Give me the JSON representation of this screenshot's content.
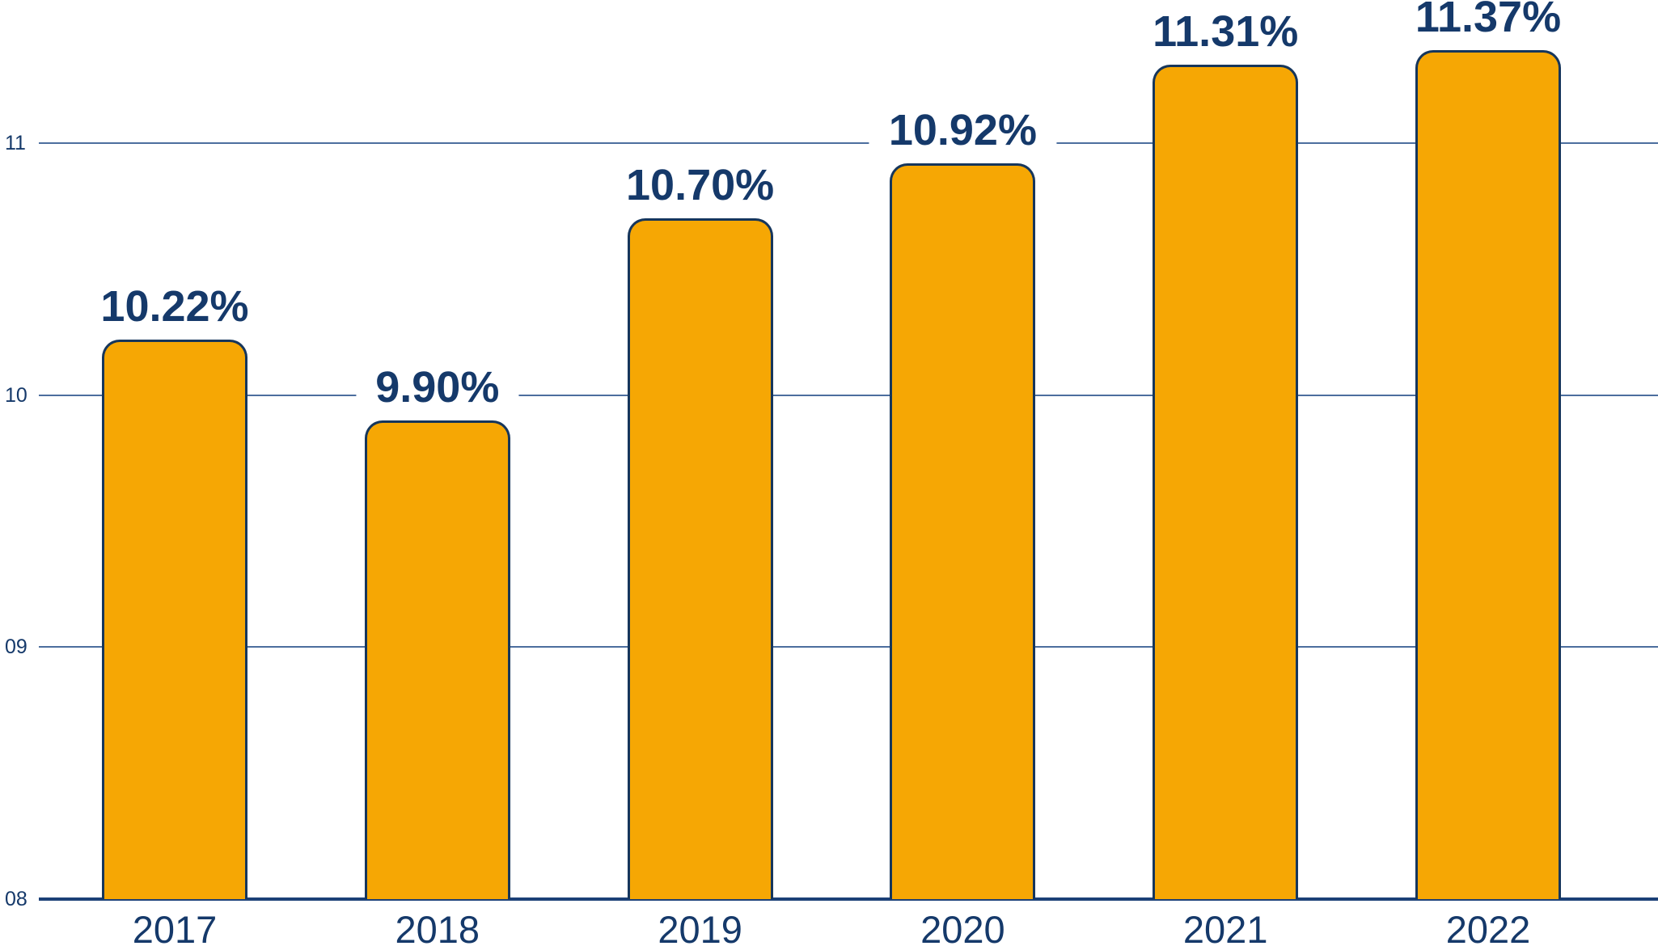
{
  "chart_data": {
    "type": "bar",
    "title": "",
    "xlabel": "",
    "ylabel": "",
    "categories": [
      "2017",
      "2018",
      "2019",
      "2020",
      "2021",
      "2022"
    ],
    "values": [
      10.22,
      9.9,
      10.7,
      10.92,
      11.31,
      11.37
    ],
    "value_labels": [
      "10.22%",
      "9.90%",
      "10.70%",
      "10.92%",
      "11.31%",
      "11.37%"
    ],
    "y_ticks": [
      {
        "label": "08",
        "value": 8
      },
      {
        "label": "09",
        "value": 9
      },
      {
        "label": "10",
        "value": 10
      },
      {
        "label": "11",
        "value": 11
      }
    ],
    "ylim": [
      8,
      11.57
    ],
    "grid": true,
    "legend": null,
    "colors": {
      "background": "#ffffff",
      "bar_fill": "#F6A704",
      "bar_border": "#16365C",
      "text_navy": "#15396A",
      "gridline": "#4C6E9E",
      "axis_line": "#1B4077"
    }
  }
}
